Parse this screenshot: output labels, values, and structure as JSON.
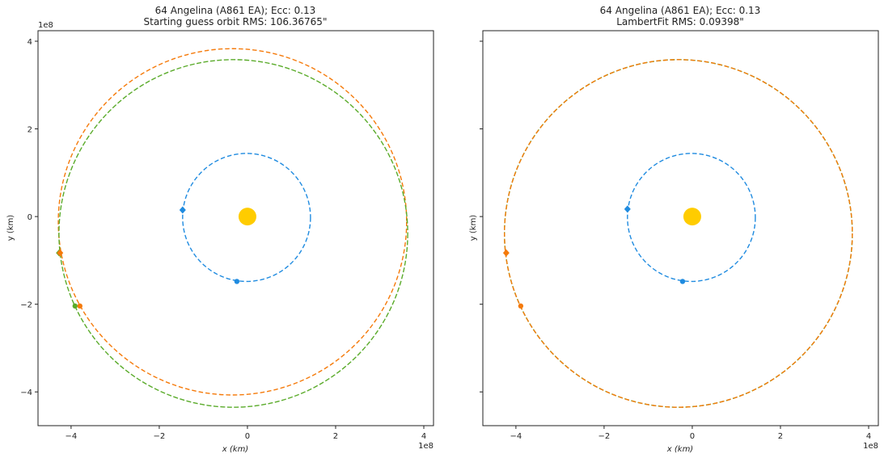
{
  "colors": {
    "earth": "#1f8be0",
    "guess": "#f57a0a",
    "target": "#5aab2a",
    "sun": "#ffcc00",
    "axis": "#222222"
  },
  "chart_data": [
    {
      "type": "line",
      "title_line1": "64 Angelina (A861 EA); Ecc: 0.13",
      "title_line2": "Starting guess orbit RMS: 106.36765\"",
      "xlabel": "x (km)",
      "ylabel": "y (km)",
      "x_offset_label": "1e8",
      "y_offset_label": "1e8",
      "xlim": [
        -4.75,
        4.22
      ],
      "ylim": [
        -4.77,
        4.24
      ],
      "xticks": [
        -4,
        -2,
        0,
        2,
        4
      ],
      "yticks": [
        -4,
        -2,
        0,
        2,
        4
      ],
      "show_yticklabels": true,
      "sun": {
        "x": 0,
        "y": 0
      },
      "orbits": [
        {
          "name": "earth",
          "color_key": "earth",
          "cx": -0.02,
          "cy": -0.02,
          "rx": 1.45,
          "ry": 1.46
        },
        {
          "name": "guess",
          "color_key": "guess",
          "cx": -0.34,
          "cy": -0.12,
          "rx": 3.95,
          "ry": 3.95
        },
        {
          "name": "asteroid",
          "color_key": "target",
          "cx": -0.32,
          "cy": -0.385,
          "rx": 3.955,
          "ry": 3.965
        }
      ],
      "markers": [
        {
          "name": "earth-start",
          "shape": "diamond",
          "color_key": "earth",
          "x": -1.47,
          "y": 0.15
        },
        {
          "name": "earth-end",
          "shape": "dot",
          "color_key": "earth",
          "x": -0.24,
          "y": -1.48
        },
        {
          "name": "asteroid-start",
          "shape": "diamond",
          "color_key": "target",
          "x": -4.27,
          "y": -0.83
        },
        {
          "name": "guess-start",
          "shape": "diamond",
          "color_key": "guess",
          "x": -4.25,
          "y": -0.83
        },
        {
          "name": "asteroid-end",
          "shape": "dot",
          "color_key": "target",
          "x": -3.91,
          "y": -2.04
        },
        {
          "name": "guess-end",
          "shape": "dot",
          "color_key": "guess",
          "x": -3.8,
          "y": -2.04
        }
      ]
    },
    {
      "type": "line",
      "title_line1": "64 Angelina (A861 EA); Ecc: 0.13",
      "title_line2": "LambertFit RMS: 0.09398\"",
      "xlabel": "x (km)",
      "ylabel": "y (km)",
      "x_offset_label": "1e8",
      "xlim": [
        -4.75,
        4.22
      ],
      "ylim": [
        -4.77,
        4.24
      ],
      "xticks": [
        -4,
        -2,
        0,
        2,
        4
      ],
      "yticks": [
        -4,
        -2,
        0,
        2,
        4
      ],
      "show_yticklabels": false,
      "sun": {
        "x": 0,
        "y": 0
      },
      "orbits": [
        {
          "name": "earth",
          "color_key": "earth",
          "cx": -0.02,
          "cy": -0.02,
          "rx": 1.45,
          "ry": 1.46
        },
        {
          "name": "asteroid",
          "color_key": "target",
          "cx": -0.315,
          "cy": -0.385,
          "rx": 3.945,
          "ry": 3.965
        },
        {
          "name": "fit",
          "color_key": "guess",
          "cx": -0.315,
          "cy": -0.385,
          "rx": 3.945,
          "ry": 3.965
        }
      ],
      "markers": [
        {
          "name": "earth-start",
          "shape": "diamond",
          "color_key": "earth",
          "x": -1.47,
          "y": 0.17
        },
        {
          "name": "earth-end",
          "shape": "dot",
          "color_key": "earth",
          "x": -0.22,
          "y": -1.48
        },
        {
          "name": "fit-start",
          "shape": "diamond",
          "color_key": "guess",
          "x": -4.22,
          "y": -0.83
        },
        {
          "name": "fit-end",
          "shape": "dot",
          "color_key": "guess",
          "x": -3.89,
          "y": -2.04
        }
      ]
    }
  ]
}
